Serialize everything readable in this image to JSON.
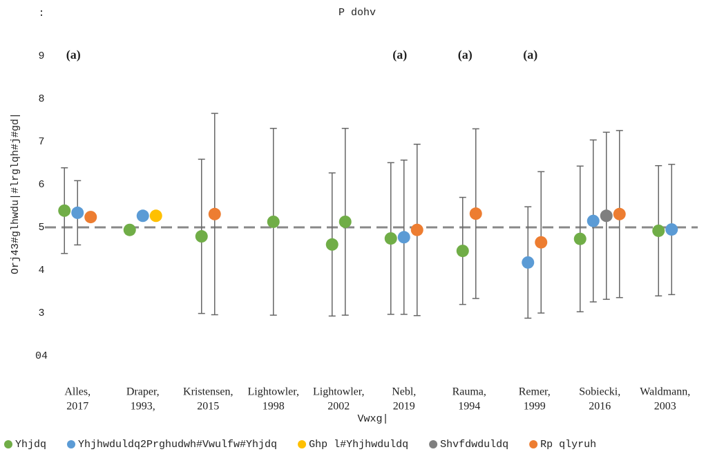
{
  "chart_data": {
    "type": "errorbar",
    "title": "P dohv",
    "x_label": "Vwxg|",
    "y_label": "Orj43#glhwdu|#lrglqh#j#gd|",
    "categories": [
      [
        "Alles,",
        "2017"
      ],
      [
        "Draper,",
        "1993,"
      ],
      [
        "Kristensen,",
        "2015"
      ],
      [
        "Lightowler,",
        "1998"
      ],
      [
        "Lightowler,",
        "2002"
      ],
      [
        "Nebl,",
        "2019"
      ],
      [
        "Rauma,",
        "1994"
      ],
      [
        "Remer,",
        "1999"
      ],
      [
        "Sobiecki,",
        "2016"
      ],
      [
        "Waldmann,",
        "2003"
      ]
    ],
    "annotations": [
      "(a)",
      null,
      null,
      null,
      null,
      "(a)",
      "(a)",
      "(a)",
      null,
      null
    ],
    "series": [
      {
        "name": "Yhjdq",
        "color": "#70ad47",
        "values": [
          [
            2.39
          ],
          [
            1.94
          ],
          [
            1.79
          ],
          [
            2.13
          ],
          [
            1.6,
            2.13
          ],
          [
            1.74
          ],
          [
            1.45
          ],
          [],
          [
            1.73
          ],
          [
            1.92
          ]
        ],
        "errors": [
          [
            1.0
          ],
          [
            null
          ],
          [
            1.8
          ],
          [
            2.18
          ],
          [
            1.67,
            2.18
          ],
          [
            1.77
          ],
          [
            1.25
          ],
          [],
          [
            1.7
          ],
          [
            1.52
          ]
        ]
      },
      {
        "name": "Yhjhwduldq2Prghudwh#Vwulfw#Yhjdq",
        "color": "#5b9bd5",
        "values": [
          [
            2.34
          ],
          [
            2.27
          ],
          [],
          [],
          [],
          [
            1.77
          ],
          [],
          [
            1.18
          ],
          [
            2.15
          ],
          [
            1.95
          ]
        ],
        "errors": [
          [
            0.75
          ],
          [
            null
          ],
          [],
          [],
          [],
          [
            1.8
          ],
          [],
          [
            1.3
          ],
          [
            1.89
          ],
          [
            1.52
          ]
        ]
      },
      {
        "name": "Ghp l#Yhjhwduldq",
        "color": "#ffc000",
        "values": [
          [],
          [
            2.27
          ],
          [],
          [],
          [],
          [],
          [],
          [],
          [],
          []
        ],
        "errors": [
          [],
          [
            null
          ],
          [],
          [],
          [],
          [],
          [],
          [],
          [],
          []
        ]
      },
      {
        "name": "Shvfdwduldq",
        "color": "#7f7f7f",
        "values": [
          [],
          [],
          [],
          [],
          [],
          [],
          [],
          [],
          [
            2.27
          ],
          []
        ],
        "errors": [
          [],
          [],
          [],
          [],
          [],
          [],
          [],
          [],
          [
            1.95
          ],
          []
        ]
      },
      {
        "name": "Rp qlyruh",
        "color": "#ed7d31",
        "values": [
          [
            2.24
          ],
          [],
          [
            2.31
          ],
          [],
          [],
          [
            1.94
          ],
          [
            2.32
          ],
          [
            1.65
          ],
          [
            2.31
          ],
          []
        ],
        "errors": [
          [
            null
          ],
          [],
          [
            2.35
          ],
          [],
          [],
          [
            2.0
          ],
          [
            1.98
          ],
          [
            1.65
          ],
          [
            1.95
          ],
          []
        ]
      }
    ],
    "reference_line": 2,
    "ylim": [
      -1,
      7
    ],
    "yticks": [
      {
        "value": -1,
        "label": "04"
      },
      {
        "value": 0,
        "label": "3"
      },
      {
        "value": 1,
        "label": "4"
      },
      {
        "value": 2,
        "label": "5"
      },
      {
        "value": 3,
        "label": "6"
      },
      {
        "value": 4,
        "label": "7"
      },
      {
        "value": 5,
        "label": "8"
      },
      {
        "value": 6,
        "label": "9"
      },
      {
        "value": 7,
        "label": ":"
      }
    ],
    "legend": "bottom"
  }
}
